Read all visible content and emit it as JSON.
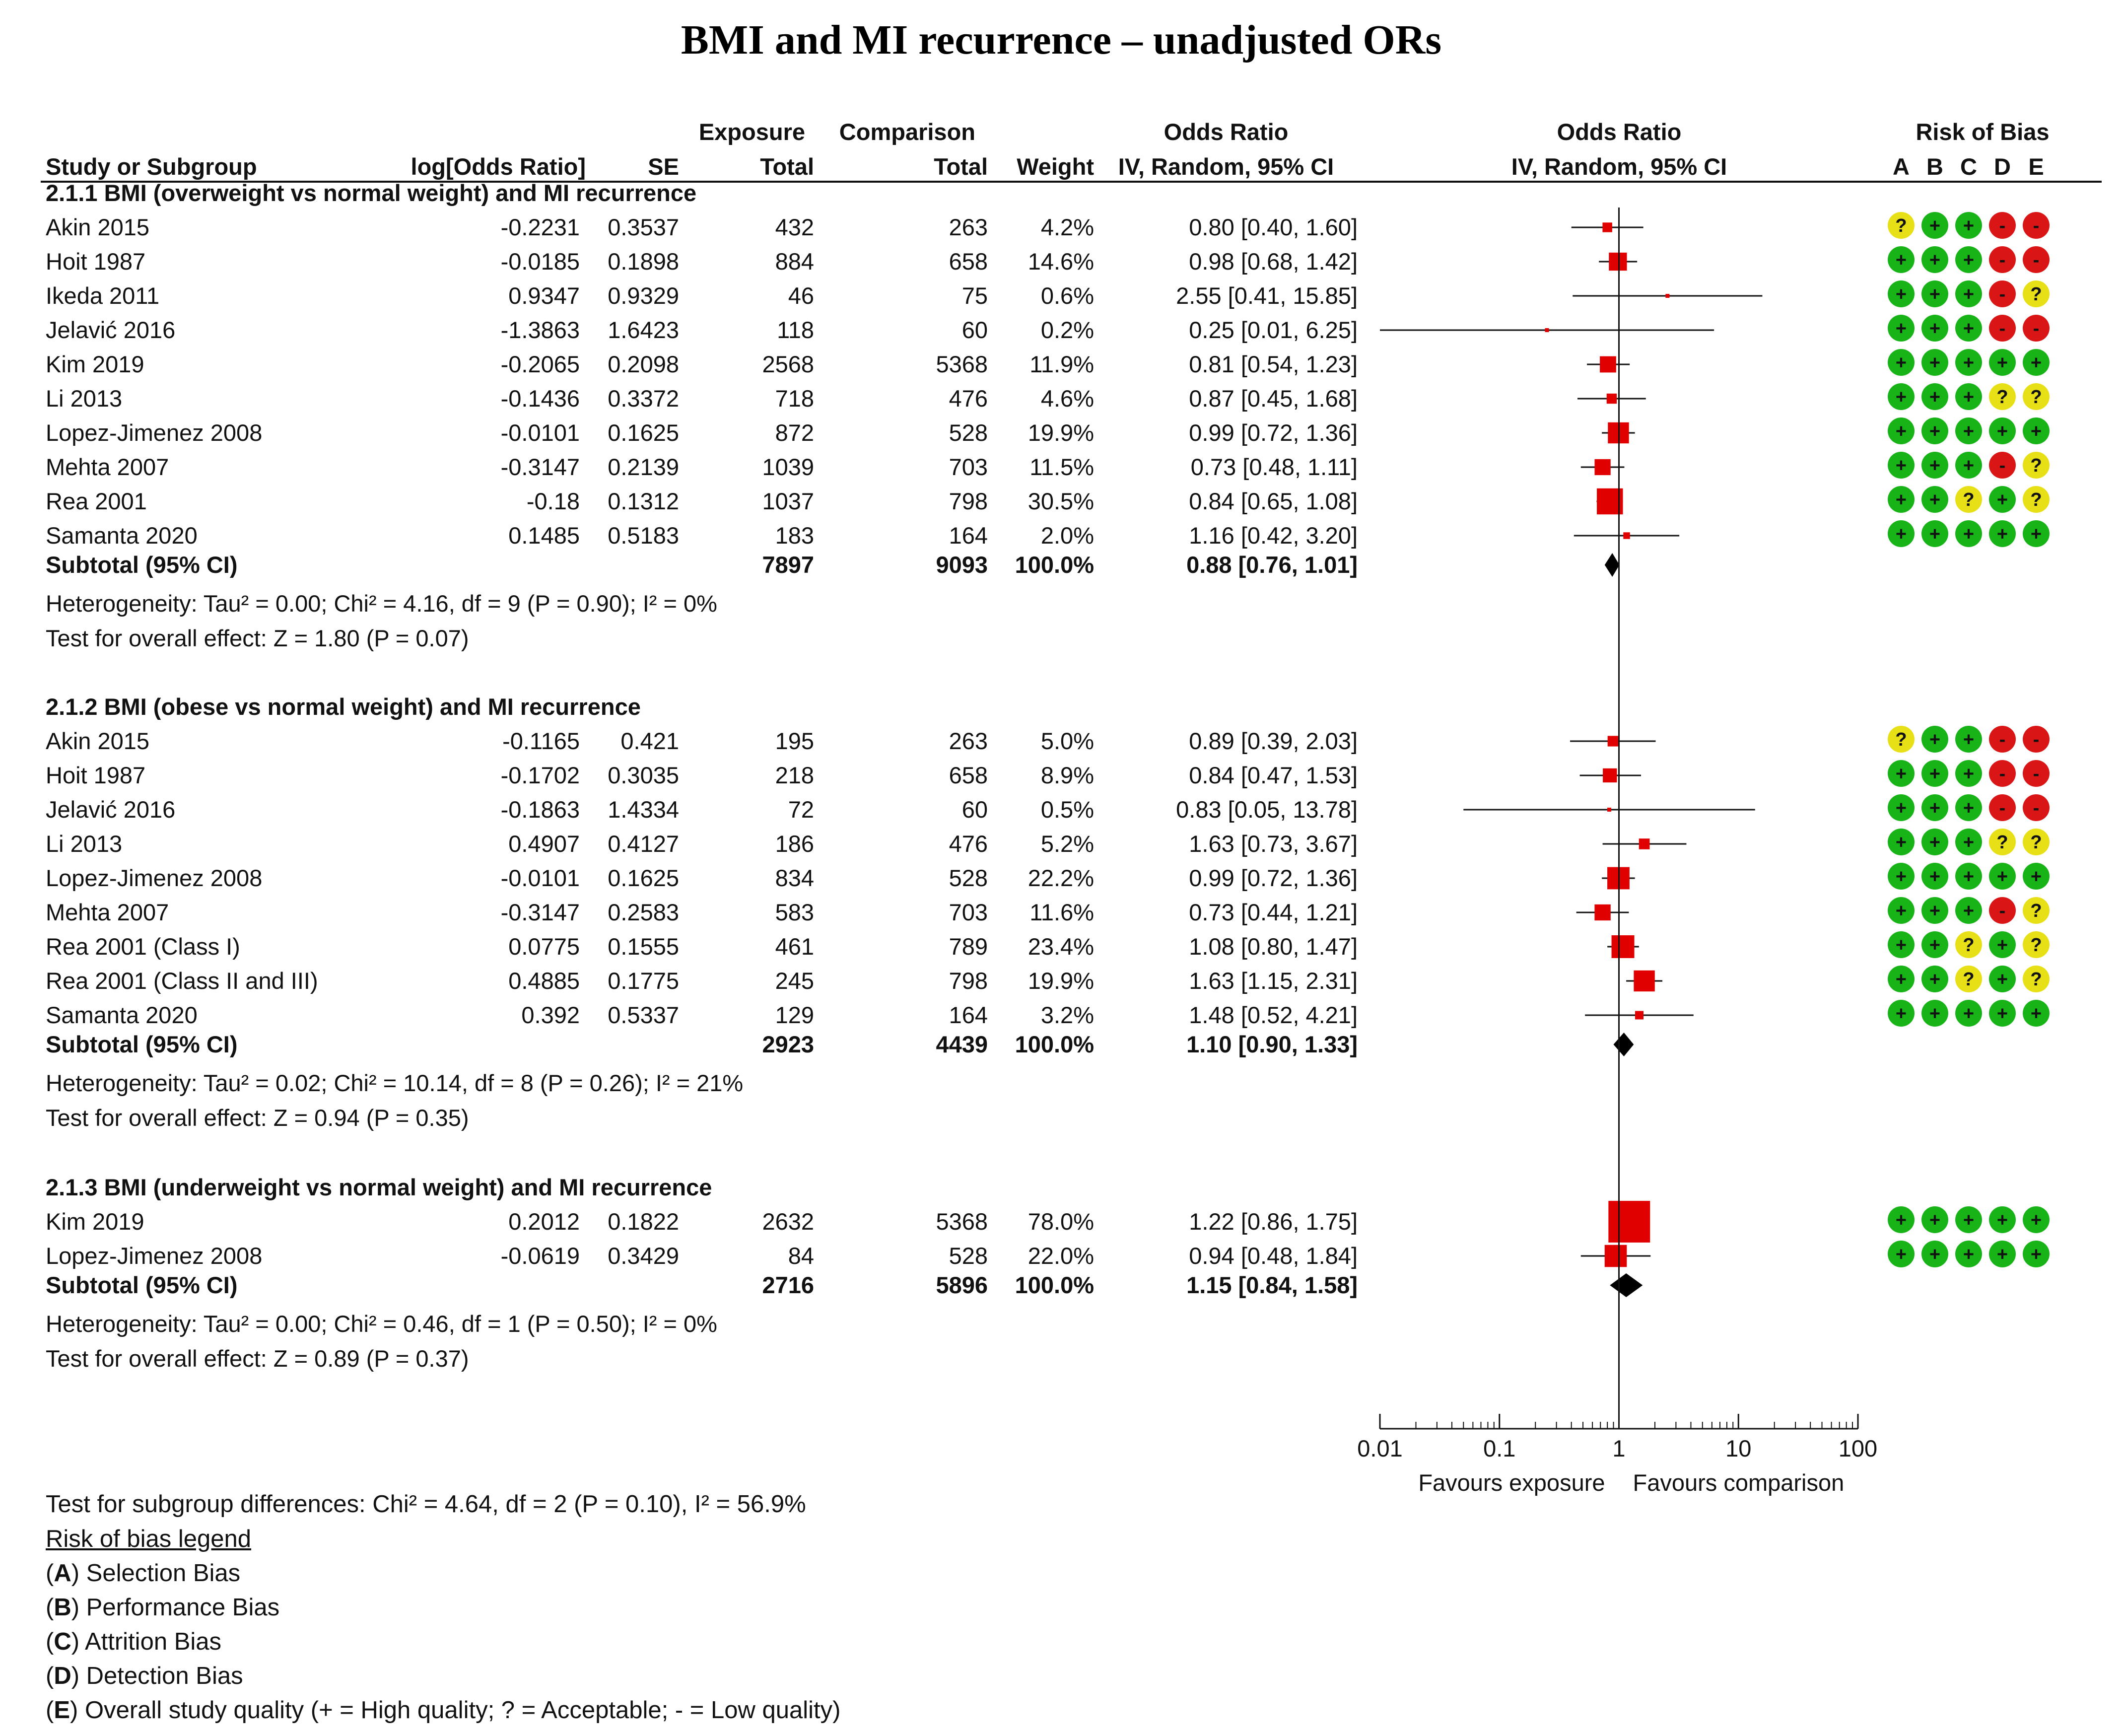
{
  "title": "BMI and MI recurrence  – unadjusted ORs",
  "headers": {
    "study": "Study or Subgroup",
    "log_or": "log[Odds Ratio]",
    "se": "SE",
    "exposure_top": "Exposure",
    "exposure_bottom": "Total",
    "comparison_top": "Comparison",
    "comparison_bottom": "Total",
    "weight": "Weight",
    "or_top": "Odds Ratio",
    "or_bottom": "IV, Random, 95% CI",
    "plot_top": "Odds Ratio",
    "plot_bottom": "IV, Random, 95% CI",
    "rob_top": "Risk of Bias",
    "rob_letters": [
      "A",
      "B",
      "C",
      "D",
      "E"
    ]
  },
  "colors": {
    "green": "#17b317",
    "yellow": "#e8e017",
    "red": "#d91515",
    "marker": "#e00000"
  },
  "chart_data": {
    "type": "forest",
    "title": "BMI and MI recurrence  – unadjusted ORs",
    "x_scale": "log",
    "xlim": [
      0.01,
      100
    ],
    "ticks": [
      0.01,
      0.1,
      1,
      10,
      100
    ],
    "tick_labels": [
      "0.01",
      "0.1",
      "1",
      "10",
      "100"
    ],
    "favours_left": "Favours exposure",
    "favours_right": "Favours comparison",
    "subgroups": [
      {
        "label": "2.1.1 BMI (overweight vs normal weight) and MI recurrence",
        "studies": [
          {
            "name": "Akin 2015",
            "log_or": "-0.2231",
            "se": "0.3537",
            "exp_total": "432",
            "comp_total": "263",
            "weight": "4.2%",
            "ci_text": "0.80 [0.40, 1.60]",
            "or": 0.8,
            "lo": 0.4,
            "hi": 1.6,
            "w": 4.2,
            "rob": [
              "?",
              "+",
              "+",
              "-",
              "-"
            ]
          },
          {
            "name": "Hoit 1987",
            "log_or": "-0.0185",
            "se": "0.1898",
            "exp_total": "884",
            "comp_total": "658",
            "weight": "14.6%",
            "ci_text": "0.98 [0.68, 1.42]",
            "or": 0.98,
            "lo": 0.68,
            "hi": 1.42,
            "w": 14.6,
            "rob": [
              "+",
              "+",
              "+",
              "-",
              "-"
            ]
          },
          {
            "name": "Ikeda 2011",
            "log_or": "0.9347",
            "se": "0.9329",
            "exp_total": "46",
            "comp_total": "75",
            "weight": "0.6%",
            "ci_text": "2.55 [0.41, 15.85]",
            "or": 2.55,
            "lo": 0.41,
            "hi": 15.85,
            "w": 0.6,
            "rob": [
              "+",
              "+",
              "+",
              "-",
              "?"
            ]
          },
          {
            "name": "Jelavić 2016",
            "log_or": "-1.3863",
            "se": "1.6423",
            "exp_total": "118",
            "comp_total": "60",
            "weight": "0.2%",
            "ci_text": "0.25 [0.01, 6.25]",
            "or": 0.25,
            "lo": 0.01,
            "hi": 6.25,
            "w": 0.2,
            "rob": [
              "+",
              "+",
              "+",
              "-",
              "-"
            ]
          },
          {
            "name": "Kim 2019",
            "log_or": "-0.2065",
            "se": "0.2098",
            "exp_total": "2568",
            "comp_total": "5368",
            "weight": "11.9%",
            "ci_text": "0.81 [0.54, 1.23]",
            "or": 0.81,
            "lo": 0.54,
            "hi": 1.23,
            "w": 11.9,
            "rob": [
              "+",
              "+",
              "+",
              "+",
              "+"
            ]
          },
          {
            "name": "Li 2013",
            "log_or": "-0.1436",
            "se": "0.3372",
            "exp_total": "718",
            "comp_total": "476",
            "weight": "4.6%",
            "ci_text": "0.87 [0.45, 1.68]",
            "or": 0.87,
            "lo": 0.45,
            "hi": 1.68,
            "w": 4.6,
            "rob": [
              "+",
              "+",
              "+",
              "?",
              "?"
            ]
          },
          {
            "name": "Lopez-Jimenez 2008",
            "log_or": "-0.0101",
            "se": "0.1625",
            "exp_total": "872",
            "comp_total": "528",
            "weight": "19.9%",
            "ci_text": "0.99 [0.72, 1.36]",
            "or": 0.99,
            "lo": 0.72,
            "hi": 1.36,
            "w": 19.9,
            "rob": [
              "+",
              "+",
              "+",
              "+",
              "+"
            ]
          },
          {
            "name": "Mehta 2007",
            "log_or": "-0.3147",
            "se": "0.2139",
            "exp_total": "1039",
            "comp_total": "703",
            "weight": "11.5%",
            "ci_text": "0.73 [0.48, 1.11]",
            "or": 0.73,
            "lo": 0.48,
            "hi": 1.11,
            "w": 11.5,
            "rob": [
              "+",
              "+",
              "+",
              "-",
              "?"
            ]
          },
          {
            "name": "Rea 2001",
            "log_or": "-0.18",
            "se": "0.1312",
            "exp_total": "1037",
            "comp_total": "798",
            "weight": "30.5%",
            "ci_text": "0.84 [0.65, 1.08]",
            "or": 0.84,
            "lo": 0.65,
            "hi": 1.08,
            "w": 30.5,
            "rob": [
              "+",
              "+",
              "?",
              "+",
              "?"
            ]
          },
          {
            "name": "Samanta 2020",
            "log_or": "0.1485",
            "se": "0.5183",
            "exp_total": "183",
            "comp_total": "164",
            "weight": "2.0%",
            "ci_text": "1.16 [0.42, 3.20]",
            "or": 1.16,
            "lo": 0.42,
            "hi": 3.2,
            "w": 2.0,
            "rob": [
              "+",
              "+",
              "+",
              "+",
              "+"
            ]
          }
        ],
        "subtotal": {
          "label": "Subtotal (95% CI)",
          "exp_total": "7897",
          "comp_total": "9093",
          "weight": "100.0%",
          "ci_text": "0.88 [0.76, 1.01]",
          "or": 0.88,
          "lo": 0.76,
          "hi": 1.01
        },
        "heterogeneity": "Heterogeneity: Tau² = 0.00; Chi² = 4.16, df = 9 (P = 0.90); I² = 0%",
        "overall_effect": "Test for overall effect: Z = 1.80 (P = 0.07)"
      },
      {
        "label": "2.1.2 BMI (obese vs normal weight) and MI recurrence",
        "studies": [
          {
            "name": "Akin 2015",
            "log_or": "-0.1165",
            "se": "0.421",
            "exp_total": "195",
            "comp_total": "263",
            "weight": "5.0%",
            "ci_text": "0.89 [0.39, 2.03]",
            "or": 0.89,
            "lo": 0.39,
            "hi": 2.03,
            "w": 5.0,
            "rob": [
              "?",
              "+",
              "+",
              "-",
              "-"
            ]
          },
          {
            "name": "Hoit 1987",
            "log_or": "-0.1702",
            "se": "0.3035",
            "exp_total": "218",
            "comp_total": "658",
            "weight": "8.9%",
            "ci_text": "0.84 [0.47, 1.53]",
            "or": 0.84,
            "lo": 0.47,
            "hi": 1.53,
            "w": 8.9,
            "rob": [
              "+",
              "+",
              "+",
              "-",
              "-"
            ]
          },
          {
            "name": "Jelavić 2016",
            "log_or": "-0.1863",
            "se": "1.4334",
            "exp_total": "72",
            "comp_total": "60",
            "weight": "0.5%",
            "ci_text": "0.83 [0.05, 13.78]",
            "or": 0.83,
            "lo": 0.05,
            "hi": 13.78,
            "w": 0.5,
            "rob": [
              "+",
              "+",
              "+",
              "-",
              "-"
            ]
          },
          {
            "name": "Li 2013",
            "log_or": "0.4907",
            "se": "0.4127",
            "exp_total": "186",
            "comp_total": "476",
            "weight": "5.2%",
            "ci_text": "1.63 [0.73, 3.67]",
            "or": 1.63,
            "lo": 0.73,
            "hi": 3.67,
            "w": 5.2,
            "rob": [
              "+",
              "+",
              "+",
              "?",
              "?"
            ]
          },
          {
            "name": "Lopez-Jimenez 2008",
            "log_or": "-0.0101",
            "se": "0.1625",
            "exp_total": "834",
            "comp_total": "528",
            "weight": "22.2%",
            "ci_text": "0.99 [0.72, 1.36]",
            "or": 0.99,
            "lo": 0.72,
            "hi": 1.36,
            "w": 22.2,
            "rob": [
              "+",
              "+",
              "+",
              "+",
              "+"
            ]
          },
          {
            "name": "Mehta 2007",
            "log_or": "-0.3147",
            "se": "0.2583",
            "exp_total": "583",
            "comp_total": "703",
            "weight": "11.6%",
            "ci_text": "0.73 [0.44, 1.21]",
            "or": 0.73,
            "lo": 0.44,
            "hi": 1.21,
            "w": 11.6,
            "rob": [
              "+",
              "+",
              "+",
              "-",
              "?"
            ]
          },
          {
            "name": "Rea 2001 (Class I)",
            "log_or": "0.0775",
            "se": "0.1555",
            "exp_total": "461",
            "comp_total": "789",
            "weight": "23.4%",
            "ci_text": "1.08 [0.80, 1.47]",
            "or": 1.08,
            "lo": 0.8,
            "hi": 1.47,
            "w": 23.4,
            "rob": [
              "+",
              "+",
              "?",
              "+",
              "?"
            ]
          },
          {
            "name": "Rea 2001 (Class II and III)",
            "log_or": "0.4885",
            "se": "0.1775",
            "exp_total": "245",
            "comp_total": "798",
            "weight": "19.9%",
            "ci_text": "1.63 [1.15, 2.31]",
            "or": 1.63,
            "lo": 1.15,
            "hi": 2.31,
            "w": 19.9,
            "rob": [
              "+",
              "+",
              "?",
              "+",
              "?"
            ]
          },
          {
            "name": "Samanta 2020",
            "log_or": "0.392",
            "se": "0.5337",
            "exp_total": "129",
            "comp_total": "164",
            "weight": "3.2%",
            "ci_text": "1.48 [0.52, 4.21]",
            "or": 1.48,
            "lo": 0.52,
            "hi": 4.21,
            "w": 3.2,
            "rob": [
              "+",
              "+",
              "+",
              "+",
              "+"
            ]
          }
        ],
        "subtotal": {
          "label": "Subtotal (95% CI)",
          "exp_total": "2923",
          "comp_total": "4439",
          "weight": "100.0%",
          "ci_text": "1.10 [0.90, 1.33]",
          "or": 1.1,
          "lo": 0.9,
          "hi": 1.33
        },
        "heterogeneity": "Heterogeneity: Tau² = 0.02; Chi² = 10.14, df = 8 (P = 0.26); I² = 21%",
        "overall_effect": "Test for overall effect: Z = 0.94 (P = 0.35)"
      },
      {
        "label": "2.1.3 BMI (underweight vs normal weight) and MI recurrence",
        "studies": [
          {
            "name": "Kim 2019",
            "log_or": "0.2012",
            "se": "0.1822",
            "exp_total": "2632",
            "comp_total": "5368",
            "weight": "78.0%",
            "ci_text": "1.22 [0.86, 1.75]",
            "or": 1.22,
            "lo": 0.86,
            "hi": 1.75,
            "w": 78.0,
            "rob": [
              "+",
              "+",
              "+",
              "+",
              "+"
            ]
          },
          {
            "name": "Lopez-Jimenez 2008",
            "log_or": "-0.0619",
            "se": "0.3429",
            "exp_total": "84",
            "comp_total": "528",
            "weight": "22.0%",
            "ci_text": "0.94 [0.48, 1.84]",
            "or": 0.94,
            "lo": 0.48,
            "hi": 1.84,
            "w": 22.0,
            "rob": [
              "+",
              "+",
              "+",
              "+",
              "+"
            ]
          }
        ],
        "subtotal": {
          "label": "Subtotal (95% CI)",
          "exp_total": "2716",
          "comp_total": "5896",
          "weight": "100.0%",
          "ci_text": "1.15 [0.84, 1.58]",
          "or": 1.15,
          "lo": 0.84,
          "hi": 1.58
        },
        "heterogeneity": "Heterogeneity: Tau² = 0.00; Chi² = 0.46, df = 1 (P = 0.50); I² = 0%",
        "overall_effect": "Test for overall effect: Z = 0.89 (P = 0.37)"
      }
    ],
    "subgroup_differences": "Test for subgroup differences: Chi² = 4.64, df = 2 (P = 0.10), I² = 56.9%"
  },
  "legend": {
    "heading": "Risk of bias legend",
    "items": [
      {
        "key": "A",
        "text": " Selection Bias"
      },
      {
        "key": "B",
        "text": " Performance Bias"
      },
      {
        "key": "C",
        "text": " Attrition Bias"
      },
      {
        "key": "D",
        "text": " Detection Bias"
      },
      {
        "key": "E",
        "text": " Overall study quality (+ = High quality; ? = Acceptable; - = Low quality)"
      }
    ]
  }
}
